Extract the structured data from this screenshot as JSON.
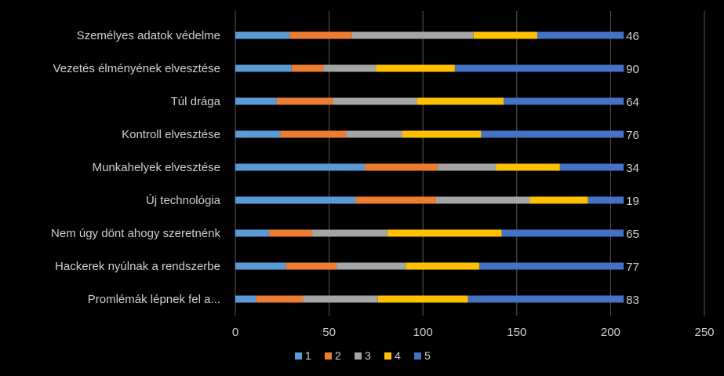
{
  "chart_data": {
    "type": "bar",
    "orientation": "horizontal",
    "stacked": true,
    "categories": [
      "Személyes adatok védelme",
      "Vezetés élményének elvesztése",
      "Túl drága",
      "Kontroll elvesztése",
      "Munkahelyek elvesztése",
      "Új technológia",
      "Nem úgy dönt ahogy szeretnénk",
      "Hackerek nyúlnak a rendszerbe",
      "Promlémák lépnek fel a..."
    ],
    "series": [
      {
        "name": "1",
        "color": "#5b9bd5",
        "values": [
          29,
          30,
          22,
          24,
          69,
          64,
          18,
          27,
          11
        ]
      },
      {
        "name": "2",
        "color": "#ed7d31",
        "values": [
          33,
          17,
          30,
          35,
          39,
          43,
          23,
          27,
          25
        ]
      },
      {
        "name": "3",
        "color": "#a5a5a5",
        "values": [
          65,
          28,
          45,
          30,
          31,
          50,
          40,
          37,
          40
        ]
      },
      {
        "name": "4",
        "color": "#ffc000",
        "values": [
          34,
          42,
          46,
          42,
          34,
          31,
          61,
          39,
          48
        ]
      },
      {
        "name": "5",
        "color": "#4472c4",
        "values": [
          46,
          90,
          64,
          76,
          34,
          19,
          65,
          77,
          83
        ]
      }
    ],
    "data_labels": [
      "46",
      "90",
      "64",
      "76",
      "34",
      "19",
      "65",
      "77",
      "83"
    ],
    "x_ticks": [
      "0",
      "50",
      "100",
      "150",
      "200",
      "250"
    ],
    "xlim": [
      0,
      250
    ],
    "title": "",
    "xlabel": "",
    "ylabel": "",
    "grid": "vertical",
    "legend": {
      "position": "bottom",
      "entries": [
        "1",
        "2",
        "3",
        "4",
        "5"
      ]
    },
    "colors": {
      "background": "#000000",
      "text": "#d0d0d0",
      "grid": "#595959"
    }
  }
}
